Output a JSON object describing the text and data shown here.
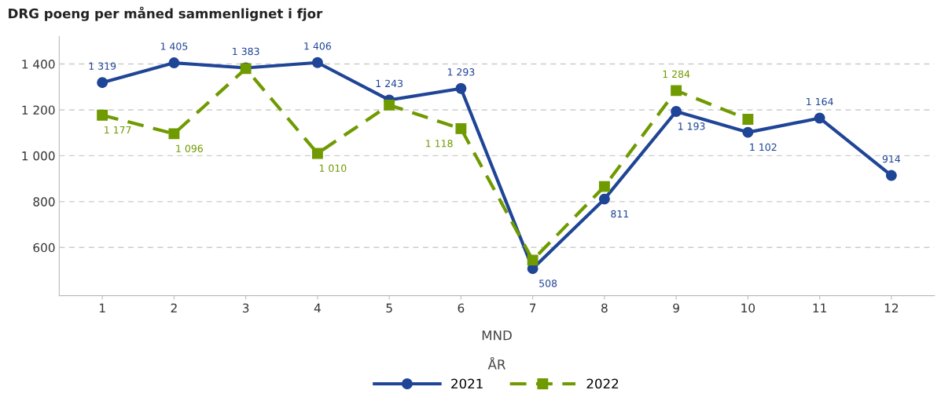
{
  "chart_data": {
    "type": "line",
    "title": "DRG poeng per måned sammenlignet i fjor",
    "xlabel": "MND",
    "legend_title": "ÅR",
    "categories": [
      "1",
      "2",
      "3",
      "4",
      "5",
      "6",
      "7",
      "8",
      "9",
      "10",
      "11",
      "12"
    ],
    "series": [
      {
        "name": "2021",
        "color": "#1f4596",
        "marker": "circle",
        "line_style": "solid",
        "values": [
          1319,
          1405,
          1383,
          1406,
          1243,
          1293,
          508,
          811,
          1193,
          1102,
          1164,
          914
        ],
        "value_labels": [
          "1 319",
          "1 405",
          "1 383",
          "1 406",
          "1 243",
          "1 293",
          "508",
          "811",
          "1 193",
          "1 102",
          "1 164",
          "914"
        ]
      },
      {
        "name": "2022",
        "color": "#6f9a00",
        "marker": "square",
        "line_style": "dashed",
        "values": [
          1177,
          1096,
          1380,
          1010,
          1221,
          1118,
          545,
          866,
          1284,
          1159,
          null,
          null
        ],
        "value_labels": [
          "1 177",
          "1 096",
          null,
          "1 010",
          null,
          "1 118",
          null,
          null,
          "1 284",
          null,
          null,
          null
        ]
      }
    ],
    "ylim": [
      390,
      1520
    ],
    "yticks": [
      {
        "value": 600,
        "label": "600"
      },
      {
        "value": 800,
        "label": "800"
      },
      {
        "value": 1000,
        "label": "1 000"
      },
      {
        "value": 1200,
        "label": "1 200"
      },
      {
        "value": 1400,
        "label": "1 400"
      }
    ],
    "grid": "y",
    "legend": "bottom"
  }
}
